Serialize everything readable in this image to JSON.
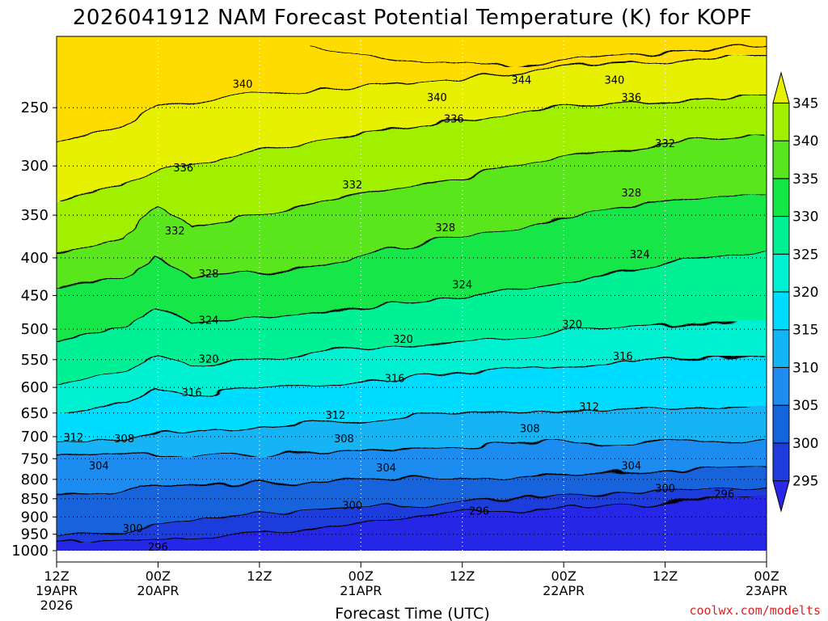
{
  "title": "2026041912 NAM Forecast Potential Temperature (K) for KOPF",
  "credit": "coolwx.com/modelts",
  "colors": {
    "ground": "#a0522d",
    "bands": [
      "#2828e6",
      "#1e3cdc",
      "#1464dc",
      "#1e8cf0",
      "#14b4f5",
      "#00dcff",
      "#00f0d2",
      "#00f096",
      "#14e646",
      "#5ae61e",
      "#a0f000",
      "#e6f000",
      "#ffdc00"
    ]
  },
  "chart_data": {
    "type": "heatmap",
    "title": "2026041912 NAM Forecast Potential Temperature (K) for KOPF",
    "xlabel": "Forecast Time (UTC)",
    "ylabel": "",
    "xlim": [
      0,
      84
    ],
    "ylim": [
      1000,
      200
    ],
    "y_scale": "log-pressure",
    "x_ticks": [
      {
        "h": 0,
        "label": "12Z",
        "sub": "19APR",
        "sub2": "2026"
      },
      {
        "h": 12,
        "label": "00Z",
        "sub": "20APR",
        "sub2": ""
      },
      {
        "h": 24,
        "label": "12Z",
        "sub": "",
        "sub2": ""
      },
      {
        "h": 36,
        "label": "00Z",
        "sub": "21APR",
        "sub2": ""
      },
      {
        "h": 48,
        "label": "12Z",
        "sub": "",
        "sub2": ""
      },
      {
        "h": 60,
        "label": "00Z",
        "sub": "22APR",
        "sub2": ""
      },
      {
        "h": 72,
        "label": "12Z",
        "sub": "",
        "sub2": ""
      },
      {
        "h": 84,
        "label": "00Z",
        "sub": "23APR",
        "sub2": ""
      }
    ],
    "y_ticks": [
      250,
      300,
      350,
      400,
      450,
      500,
      550,
      600,
      650,
      700,
      750,
      800,
      850,
      900,
      950,
      1000
    ],
    "colorbar": {
      "levels": [
        295,
        300,
        305,
        310,
        315,
        320,
        325,
        330,
        335,
        340,
        345
      ],
      "range": [
        291,
        349
      ]
    },
    "grid": true,
    "contours": [
      {
        "level": 296,
        "p": [
          [
            0,
            975
          ],
          [
            8,
            970
          ],
          [
            16,
            960
          ],
          [
            24,
            945
          ],
          [
            32,
            925
          ],
          [
            40,
            905
          ],
          [
            48,
            890
          ],
          [
            56,
            880
          ],
          [
            64,
            872
          ],
          [
            72,
            862
          ],
          [
            78,
            850
          ],
          [
            84,
            845
          ]
        ],
        "labels": [
          [
            12,
            1000
          ],
          [
            50,
            893
          ],
          [
            79,
            847
          ]
        ]
      },
      {
        "level": 300,
        "p": [
          [
            0,
            955
          ],
          [
            8,
            950
          ],
          [
            12,
            920
          ],
          [
            18,
            905
          ],
          [
            24,
            890
          ],
          [
            32,
            880
          ],
          [
            40,
            870
          ],
          [
            48,
            860
          ],
          [
            56,
            850
          ],
          [
            64,
            840
          ],
          [
            72,
            832
          ],
          [
            78,
            825
          ],
          [
            84,
            820
          ]
        ],
        "labels": [
          [
            9,
            943
          ],
          [
            35,
            878
          ],
          [
            72,
            832
          ]
        ]
      },
      {
        "level": 304,
        "p": [
          [
            0,
            840
          ],
          [
            6,
            845
          ],
          [
            10,
            815
          ],
          [
            16,
            815
          ],
          [
            24,
            810
          ],
          [
            32,
            805
          ],
          [
            40,
            800
          ],
          [
            48,
            795
          ],
          [
            56,
            790
          ],
          [
            64,
            782
          ],
          [
            72,
            775
          ],
          [
            80,
            770
          ],
          [
            84,
            768
          ]
        ],
        "labels": [
          [
            5,
            775
          ],
          [
            39,
            780
          ],
          [
            68,
            775
          ]
        ]
      },
      {
        "level": 308,
        "p": [
          [
            0,
            745
          ],
          [
            8,
            740
          ],
          [
            12,
            745
          ],
          [
            16,
            745
          ],
          [
            24,
            740
          ],
          [
            32,
            735
          ],
          [
            40,
            728
          ],
          [
            48,
            722
          ],
          [
            56,
            716
          ],
          [
            64,
            715
          ],
          [
            72,
            712
          ],
          [
            78,
            708
          ],
          [
            84,
            706
          ]
        ],
        "labels": [
          [
            8,
            712
          ],
          [
            34,
            712
          ],
          [
            56,
            690
          ]
        ]
      },
      {
        "level": 312,
        "p": [
          [
            0,
            715
          ],
          [
            8,
            700
          ],
          [
            16,
            690
          ],
          [
            24,
            680
          ],
          [
            32,
            670
          ],
          [
            40,
            660
          ],
          [
            48,
            650
          ],
          [
            56,
            646
          ],
          [
            64,
            645
          ],
          [
            72,
            642
          ],
          [
            78,
            640
          ],
          [
            84,
            638
          ]
        ],
        "labels": [
          [
            2,
            710
          ],
          [
            33,
            662
          ],
          [
            63,
            645
          ]
        ]
      },
      {
        "level": 316,
        "p": [
          [
            0,
            650
          ],
          [
            8,
            630
          ],
          [
            12,
            600
          ],
          [
            16,
            615
          ],
          [
            24,
            605
          ],
          [
            32,
            595
          ],
          [
            40,
            585
          ],
          [
            48,
            575
          ],
          [
            56,
            565
          ],
          [
            64,
            556
          ],
          [
            72,
            548
          ],
          [
            78,
            546
          ],
          [
            84,
            544
          ]
        ],
        "labels": [
          [
            16,
            617
          ],
          [
            40,
            590
          ],
          [
            67,
            550
          ]
        ]
      },
      {
        "level": 320,
        "p": [
          [
            0,
            595
          ],
          [
            8,
            570
          ],
          [
            12,
            545
          ],
          [
            16,
            560
          ],
          [
            24,
            550
          ],
          [
            32,
            540
          ],
          [
            40,
            528
          ],
          [
            48,
            520
          ],
          [
            56,
            508
          ],
          [
            64,
            500
          ],
          [
            72,
            494
          ],
          [
            78,
            490
          ],
          [
            84,
            488
          ]
        ],
        "labels": [
          [
            18,
            555
          ],
          [
            41,
            522
          ],
          [
            61,
            498
          ]
        ]
      },
      {
        "level": 324,
        "p": [
          [
            0,
            520
          ],
          [
            8,
            495
          ],
          [
            12,
            470
          ],
          [
            16,
            490
          ],
          [
            24,
            485
          ],
          [
            32,
            475
          ],
          [
            40,
            462
          ],
          [
            48,
            452
          ],
          [
            56,
            440
          ],
          [
            64,
            425
          ],
          [
            72,
            405
          ],
          [
            78,
            398
          ],
          [
            84,
            392
          ]
        ],
        "labels": [
          [
            18,
            492
          ],
          [
            48,
            440
          ],
          [
            69,
            400
          ]
        ]
      },
      {
        "level": 328,
        "p": [
          [
            0,
            440
          ],
          [
            8,
            425
          ],
          [
            12,
            400
          ],
          [
            16,
            425
          ],
          [
            24,
            420
          ],
          [
            32,
            408
          ],
          [
            40,
            390
          ],
          [
            48,
            375
          ],
          [
            56,
            360
          ],
          [
            64,
            345
          ],
          [
            72,
            335
          ],
          [
            78,
            330
          ],
          [
            84,
            328
          ]
        ],
        "labels": [
          [
            18,
            425
          ],
          [
            46,
            368
          ],
          [
            68,
            330
          ]
        ]
      },
      {
        "level": 332,
        "p": [
          [
            0,
            395
          ],
          [
            8,
            375
          ],
          [
            12,
            340
          ],
          [
            16,
            365
          ],
          [
            24,
            350
          ],
          [
            32,
            335
          ],
          [
            40,
            322
          ],
          [
            48,
            312
          ],
          [
            56,
            298
          ],
          [
            64,
            288
          ],
          [
            72,
            280
          ],
          [
            78,
            275
          ],
          [
            84,
            272
          ]
        ],
        "labels": [
          [
            14,
            372
          ],
          [
            35,
            322
          ],
          [
            72,
            283
          ]
        ]
      },
      {
        "level": 336,
        "p": [
          [
            0,
            335
          ],
          [
            8,
            318
          ],
          [
            12,
            305
          ],
          [
            16,
            300
          ],
          [
            24,
            285
          ],
          [
            32,
            275
          ],
          [
            40,
            268
          ],
          [
            48,
            260
          ],
          [
            56,
            252
          ],
          [
            64,
            248
          ],
          [
            72,
            245
          ],
          [
            78,
            242
          ],
          [
            84,
            240
          ]
        ],
        "labels": [
          [
            15,
            305
          ],
          [
            47,
            262
          ],
          [
            68,
            245
          ]
        ]
      },
      {
        "level": 340,
        "p": [
          [
            0,
            280
          ],
          [
            8,
            265
          ],
          [
            12,
            250
          ],
          [
            16,
            245
          ],
          [
            24,
            240
          ],
          [
            32,
            236
          ],
          [
            40,
            232
          ],
          [
            48,
            228
          ],
          [
            56,
            222
          ],
          [
            64,
            218
          ],
          [
            72,
            216
          ],
          [
            78,
            214
          ],
          [
            84,
            212
          ]
        ],
        "labels": [
          [
            22,
            235
          ],
          [
            45,
            245
          ],
          [
            66,
            232
          ]
        ]
      },
      {
        "level": 344,
        "p": [
          [
            30,
            205
          ],
          [
            36,
            212
          ],
          [
            42,
            216
          ],
          [
            48,
            218
          ],
          [
            54,
            220
          ],
          [
            60,
            216
          ],
          [
            66,
            212
          ],
          [
            72,
            210
          ],
          [
            78,
            208
          ],
          [
            84,
            206
          ]
        ],
        "labels": [
          [
            55,
            232
          ]
        ]
      }
    ]
  }
}
